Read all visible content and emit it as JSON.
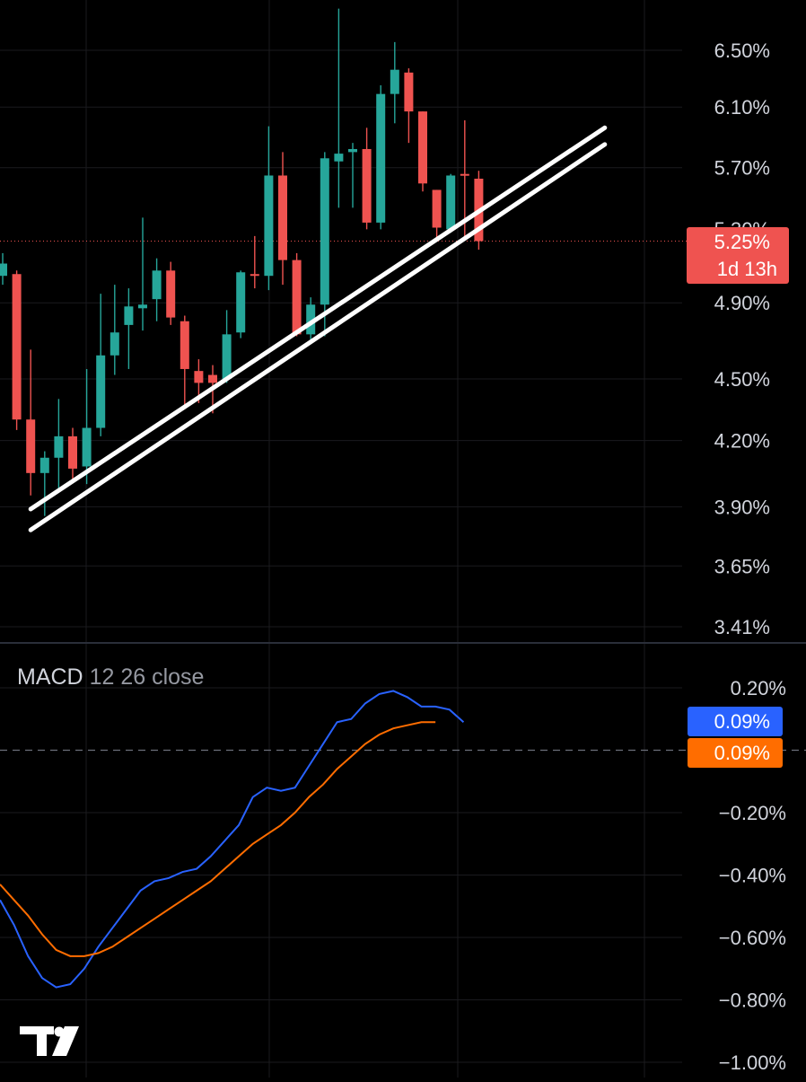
{
  "colors": {
    "background": "#000000",
    "grid": "#1a1a1e",
    "separator": "#2a2e39",
    "up": "#26a69a",
    "down": "#ef5350",
    "axis_text": "#d1d4dc",
    "macd_line": "#2962ff",
    "signal_line": "#ff6d00",
    "trendline": "#ffffff"
  },
  "chart_data": [
    {
      "type": "candlestick",
      "y_axis_ticks": [
        "6.50%",
        "6.10%",
        "5.70%",
        "4.90%",
        "4.50%",
        "4.20%",
        "3.90%",
        "3.65%",
        "3.41%"
      ],
      "y_tick_values": [
        6.5,
        6.1,
        5.7,
        4.9,
        4.5,
        4.2,
        3.9,
        3.65,
        3.41
      ],
      "last_price": {
        "label": "5.25%",
        "countdown": "1d 13h",
        "value": 5.25
      },
      "candles": [
        {
          "o": 5.05,
          "h": 5.18,
          "l": 5.0,
          "c": 5.12
        },
        {
          "o": 5.06,
          "h": 5.08,
          "l": 4.25,
          "c": 4.3
        },
        {
          "o": 4.3,
          "h": 4.65,
          "l": 3.95,
          "c": 4.05
        },
        {
          "o": 4.05,
          "h": 4.15,
          "l": 3.86,
          "c": 4.12
        },
        {
          "o": 4.12,
          "h": 4.4,
          "l": 3.98,
          "c": 4.22
        },
        {
          "o": 4.22,
          "h": 4.26,
          "l": 4.02,
          "c": 4.07
        },
        {
          "o": 4.08,
          "h": 4.55,
          "l": 4.0,
          "c": 4.26
        },
        {
          "o": 4.26,
          "h": 4.95,
          "l": 4.22,
          "c": 4.62
        },
        {
          "o": 4.62,
          "h": 5.0,
          "l": 4.52,
          "c": 4.74
        },
        {
          "o": 4.78,
          "h": 4.98,
          "l": 4.55,
          "c": 4.88
        },
        {
          "o": 4.87,
          "h": 5.39,
          "l": 4.75,
          "c": 4.89
        },
        {
          "o": 4.92,
          "h": 5.15,
          "l": 4.8,
          "c": 5.08
        },
        {
          "o": 5.08,
          "h": 5.13,
          "l": 4.78,
          "c": 4.82
        },
        {
          "o": 4.8,
          "h": 4.83,
          "l": 4.35,
          "c": 4.55
        },
        {
          "o": 4.54,
          "h": 4.6,
          "l": 4.38,
          "c": 4.48
        },
        {
          "o": 4.52,
          "h": 4.57,
          "l": 4.33,
          "c": 4.48
        },
        {
          "o": 4.5,
          "h": 4.86,
          "l": 4.48,
          "c": 4.73
        },
        {
          "o": 4.74,
          "h": 5.08,
          "l": 4.71,
          "c": 5.07
        },
        {
          "o": 5.06,
          "h": 5.28,
          "l": 4.98,
          "c": 5.05
        },
        {
          "o": 5.05,
          "h": 5.97,
          "l": 4.97,
          "c": 5.65
        },
        {
          "o": 5.65,
          "h": 5.8,
          "l": 5.0,
          "c": 5.14
        },
        {
          "o": 5.14,
          "h": 5.18,
          "l": 4.72,
          "c": 4.73
        },
        {
          "o": 4.73,
          "h": 4.93,
          "l": 4.7,
          "c": 4.89
        },
        {
          "o": 4.89,
          "h": 5.8,
          "l": 4.72,
          "c": 5.76
        },
        {
          "o": 5.74,
          "h": 6.81,
          "l": 5.45,
          "c": 5.79
        },
        {
          "o": 5.8,
          "h": 5.86,
          "l": 5.45,
          "c": 5.82
        },
        {
          "o": 5.82,
          "h": 5.96,
          "l": 5.32,
          "c": 5.36
        },
        {
          "o": 5.36,
          "h": 6.25,
          "l": 5.32,
          "c": 6.19
        },
        {
          "o": 6.19,
          "h": 6.56,
          "l": 5.99,
          "c": 6.36
        },
        {
          "o": 6.34,
          "h": 6.37,
          "l": 5.86,
          "c": 6.07
        },
        {
          "o": 6.07,
          "h": 6.07,
          "l": 5.55,
          "c": 5.6
        },
        {
          "o": 5.56,
          "h": 5.56,
          "l": 5.25,
          "c": 5.33
        },
        {
          "o": 5.32,
          "h": 5.66,
          "l": 5.3,
          "c": 5.65
        },
        {
          "o": 5.66,
          "h": 6.01,
          "l": 5.26,
          "c": 5.65
        },
        {
          "o": 5.63,
          "h": 5.68,
          "l": 5.2,
          "c": 5.25
        }
      ],
      "trendlines": [
        {
          "from": {
            "candle": 2,
            "value": 3.89
          },
          "to": {
            "candle": 43,
            "value": 5.96
          }
        },
        {
          "from": {
            "candle": 2,
            "value": 3.8
          },
          "to": {
            "candle": 43,
            "value": 5.85
          }
        }
      ]
    },
    {
      "type": "line",
      "indicator_name": "MACD",
      "indicator_params": "12 26 close",
      "y_axis_ticks": [
        "0.20%",
        "−0.20%",
        "−0.40%",
        "−0.60%",
        "−0.80%",
        "−1.00%"
      ],
      "y_tick_values": [
        0.2,
        -0.2,
        -0.4,
        -0.6,
        -0.8,
        -1.0
      ],
      "zero_line": 0.0,
      "macd_badge": "0.09%",
      "signal_badge": "0.09%",
      "series": [
        {
          "values": [
            -0.48,
            -0.56,
            -0.66,
            -0.73,
            -0.76,
            -0.75,
            -0.7,
            -0.63,
            -0.57,
            -0.51,
            -0.45,
            -0.42,
            -0.41,
            -0.39,
            -0.38,
            -0.34,
            -0.29,
            -0.24,
            -0.15,
            -0.12,
            -0.13,
            -0.12,
            -0.05,
            0.02,
            0.09,
            0.1,
            0.15,
            0.18,
            0.19,
            0.17,
            0.14,
            0.14,
            0.13,
            0.09
          ]
        },
        {
          "values": [
            -0.43,
            -0.48,
            -0.53,
            -0.59,
            -0.64,
            -0.66,
            -0.66,
            -0.65,
            -0.63,
            -0.6,
            -0.57,
            -0.54,
            -0.51,
            -0.48,
            -0.45,
            -0.42,
            -0.38,
            -0.34,
            -0.3,
            -0.27,
            -0.24,
            -0.2,
            -0.15,
            -0.11,
            -0.06,
            -0.02,
            0.02,
            0.05,
            0.07,
            0.08,
            0.09,
            0.09
          ]
        }
      ]
    }
  ],
  "logo_text": "TV"
}
